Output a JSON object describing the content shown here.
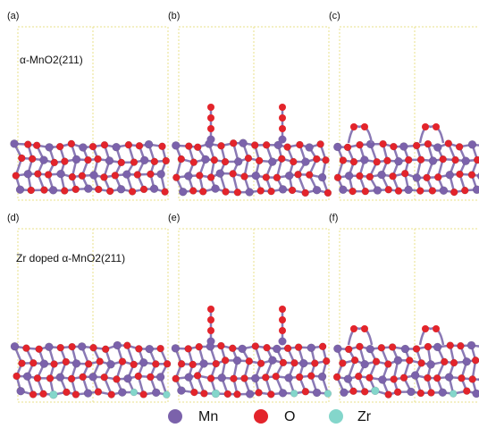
{
  "panels": [
    {
      "label": "(a)",
      "caption": "α-MnO2(211)"
    },
    {
      "label": "(b)"
    },
    {
      "label": "(c)"
    },
    {
      "label": "(d)",
      "caption": "Zr doped α-MnO2(211)"
    },
    {
      "label": "(e)"
    },
    {
      "label": "(f)"
    }
  ],
  "legend": [
    {
      "label": "Mn",
      "color": "#7b62ab"
    },
    {
      "label": "O",
      "color": "#e3242b"
    },
    {
      "label": "Zr",
      "color": "#84d6cb"
    }
  ]
}
